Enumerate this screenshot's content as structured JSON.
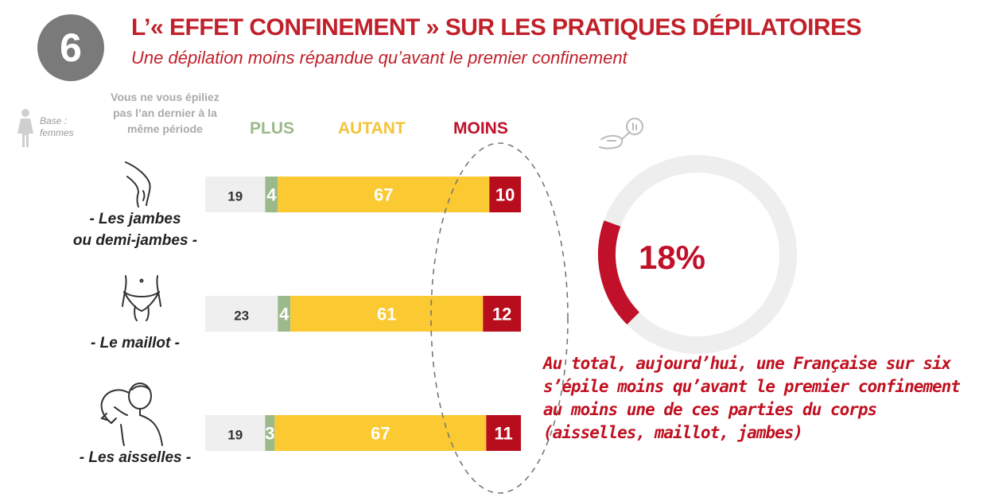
{
  "header": {
    "badge_number": "6",
    "title": "L’« EFFET CONFINEMENT »  SUR LES PRATIQUES DÉPILATOIRES",
    "subtitle": "Une dépilation moins répandue qu’avant le premier confinement"
  },
  "base": {
    "line1": "Base :",
    "line2": "femmes"
  },
  "non_epil_header": {
    "line1": "Vous ne vous épiliez",
    "line2": "pas l’an dernier à la",
    "line3": "même période"
  },
  "columns": {
    "plus": "PLUS",
    "autant": "AUTANT",
    "moins": "MOINS"
  },
  "rows": [
    {
      "label_line1": "- Les jambes",
      "label_line2": "ou demi-jambes -"
    },
    {
      "label_line1": "- Le maillot -",
      "label_line2": ""
    },
    {
      "label_line1": "- Les aisselles -",
      "label_line2": ""
    }
  ],
  "colors": {
    "non": "#efefef",
    "plus": "#9bb98a",
    "autant": "#fbc932",
    "moins": "#b80d1d",
    "accent": "#c0202a",
    "donut_track": "#eeeeee",
    "donut_fill": "#c0102a"
  },
  "chart_data": {
    "type": "bar",
    "orientation": "horizontal",
    "stacked": true,
    "categories": [
      "- Les jambes ou demi-jambes -",
      "- Le maillot -",
      "- Les aisselles -"
    ],
    "series": [
      {
        "name": "Vous ne vous épiliez pas l’an dernier à la même période",
        "values": [
          19,
          23,
          19
        ]
      },
      {
        "name": "PLUS",
        "values": [
          4,
          4,
          3
        ]
      },
      {
        "name": "AUTANT",
        "values": [
          67,
          61,
          67
        ]
      },
      {
        "name": "MOINS",
        "values": [
          10,
          12,
          11
        ]
      }
    ],
    "donut": {
      "value": 18,
      "label": "18%"
    }
  },
  "conclusion": {
    "line1": "Au total, aujourd’hui, une Française sur six",
    "line2": "s’épile moins qu’avant le premier confinement",
    "line3": "au moins une de ces parties du corps",
    "line4": "(aisselles, maillot, jambes)"
  }
}
